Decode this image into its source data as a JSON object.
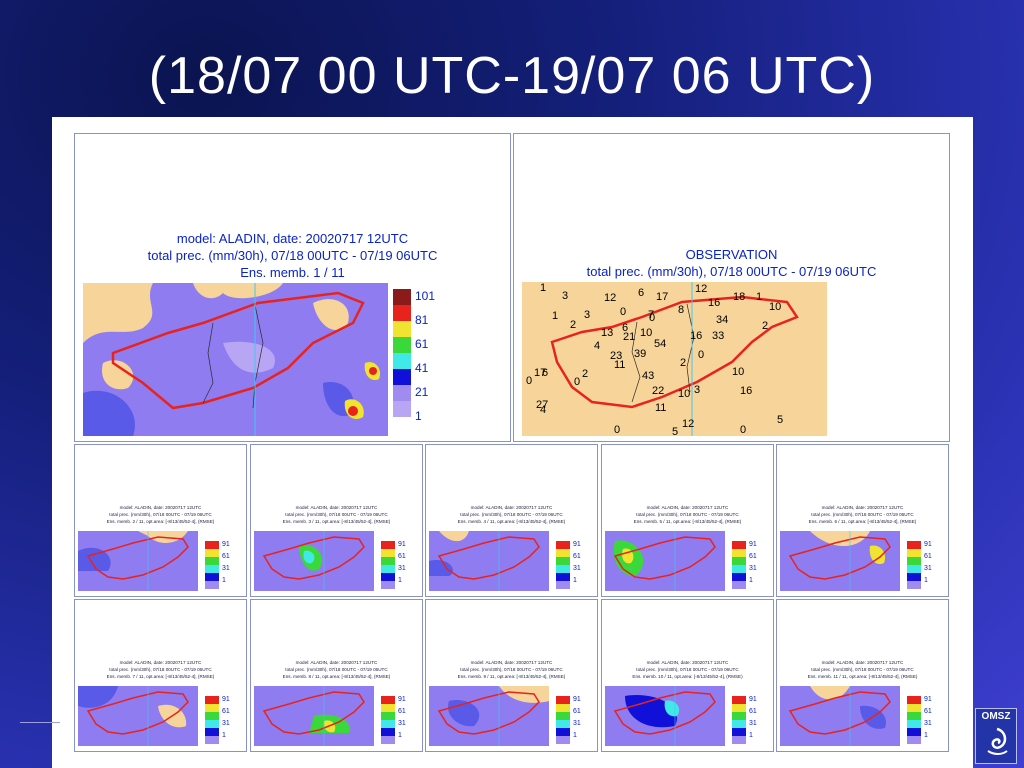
{
  "slide": {
    "title": "(18/07 00 UTC-19/07 06 UTC)"
  },
  "model_panel": {
    "caption_line1": "model: ALADIN, date: 20020717 12UTC",
    "caption_line2": "total prec. (mm/30h), 07/18 00UTC - 07/19 06UTC",
    "caption_line3": "Ens. memb. 1 / 11",
    "legend_labels": [
      "101",
      "81",
      "61",
      "41",
      "21",
      "1"
    ]
  },
  "observation_panel": {
    "caption_line1": "OBSERVATION",
    "caption_line2": "total prec. (mm/30h), 07/18 00UTC - 07/19 06UTC",
    "stations": [
      "1",
      "3",
      "12",
      "6",
      "17",
      "12",
      "16",
      "18",
      "1",
      "10",
      "1",
      "0",
      "3",
      "0",
      "7",
      "8",
      "34",
      "2",
      "2",
      "13",
      "6",
      "21",
      "10",
      "16",
      "33",
      "4",
      "54",
      "23",
      "39",
      "2",
      "0",
      "11",
      "17",
      "6",
      "43",
      "0",
      "10",
      "2",
      "0",
      "22",
      "10",
      "3",
      "16",
      "27",
      "4",
      "11",
      "12",
      "5",
      "0",
      "5",
      "0"
    ]
  },
  "small_panels": {
    "caption_line1": "model: ALADIN, date: 20020717 12UTC",
    "caption_line2": "total prec. (mm/30h), 07/18 00UTC - 07/19 06UTC",
    "members": [
      "Ens. memb. 2 / 11, opt.area: [-8/13/45/52-4], (RMSE)",
      "Ens. memb. 3 / 11, opt.area: [-8/13/45/52-4], (RMSE)",
      "Ens. memb. 4 / 11, opt.area: [-8/13/45/52-4], (RMSE)",
      "Ens. memb. 5 / 11, opt.area: [-8/13/45/52-4], (RMSE)",
      "Ens. memb. 6 / 11, opt.area: [-8/13/45/52-4], (RMSE)",
      "Ens. memb. 7 / 11, opt.area: [-8/13/45/52-4], (RMSE)",
      "Ens. memb. 8 / 11, opt.area: [-8/13/45/52-4], (RMSE)",
      "Ens. memb. 9 / 11, opt.area: [-8/13/45/52-4], (RMSE)",
      "Ens. memb. 10 / 11, opt.area: [-8/13/45/52-4], (RMSE)",
      "Ens. memb. 11 / 11, opt.area: [-8/13/45/52-4], (RMSE)"
    ],
    "legend_labels": [
      "91",
      "61",
      "31",
      "1"
    ]
  },
  "colors": {
    "background": "#1e2a9a",
    "map_land": "#f7d59a",
    "precip_light": "#8f7cf0",
    "precip_mid": "#5a5ae8",
    "border_red": "#e8231e",
    "caption_blue": "#0a23c8"
  },
  "logo": {
    "text": "OMSZ"
  }
}
